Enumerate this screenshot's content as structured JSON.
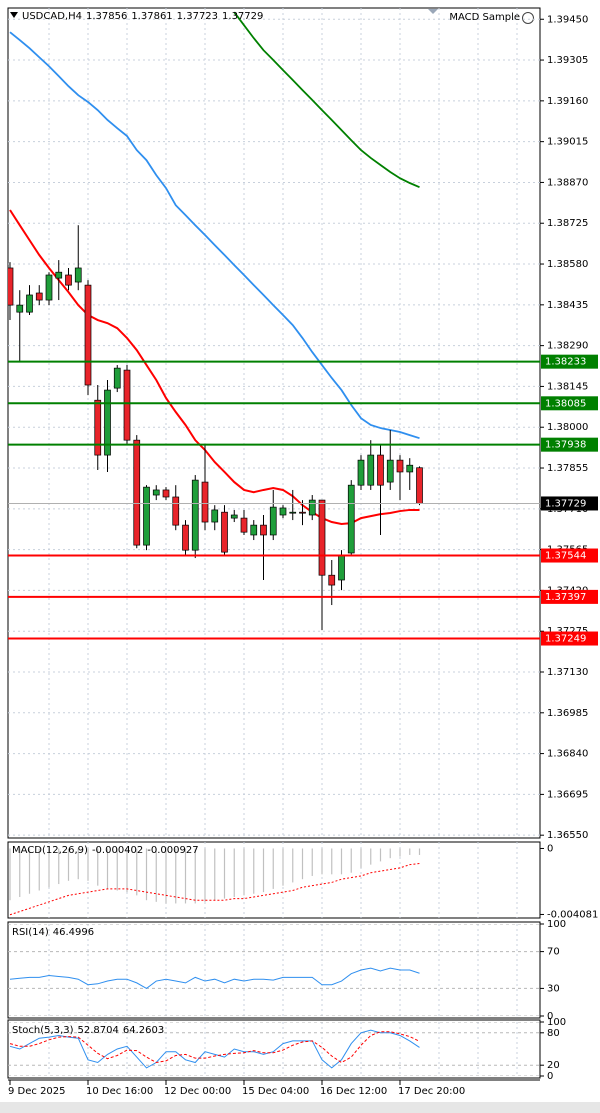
{
  "chart_data": [
    {
      "type": "candlestick",
      "title": "USDCAD,H4",
      "expert": "MACD Sample",
      "categories": [
        "9 Dec 2025",
        null,
        null,
        null,
        null,
        null,
        null,
        null,
        "10 Dec 16:00",
        null,
        null,
        null,
        null,
        null,
        null,
        null,
        "12 Dec 00:00",
        null,
        null,
        null,
        null,
        null,
        null,
        null,
        "15 Dec 04:00",
        null,
        null,
        null,
        null,
        null,
        null,
        null,
        "16 Dec 12:00",
        null,
        null,
        null,
        null,
        null,
        null,
        null,
        "17 Dec 20:00",
        null,
        null
      ],
      "open": [
        1.38566,
        1.38409,
        1.38409,
        1.38477,
        1.38452,
        1.3853,
        1.38541,
        1.38516,
        1.38505,
        1.38096,
        1.37901,
        1.38139,
        1.38203,
        1.37954,
        1.37581,
        1.37759,
        1.37777,
        1.37752,
        1.37652,
        1.37563,
        1.37805,
        1.37663,
        1.37698,
        1.37677,
        1.37677,
        1.37617,
        1.37652,
        1.37617,
        1.37688,
        1.37695,
        1.37698,
        1.37688,
        1.37741,
        1.37474,
        1.37457,
        1.37553,
        1.37794,
        1.37794,
        1.37901,
        1.37805,
        1.37883,
        1.37841,
        1.37856
      ],
      "high": [
        1.38587,
        1.38487,
        1.38505,
        1.38505,
        1.38551,
        1.38594,
        1.38566,
        1.38718,
        1.38523,
        1.3815,
        1.38168,
        1.38221,
        1.38221,
        1.37972,
        1.37794,
        1.37794,
        1.37787,
        1.37794,
        1.3767,
        1.3783,
        1.37937,
        1.37723,
        1.37723,
        1.37706,
        1.37706,
        1.3767,
        1.37688,
        1.37777,
        1.37723,
        1.37777,
        1.37741,
        1.37759,
        1.37741,
        1.37528,
        1.37563,
        1.37812,
        1.37901,
        1.37954,
        1.37937,
        1.3799,
        1.37901,
        1.3789,
        1.37861
      ],
      "low": [
        1.38381,
        1.38232,
        1.38399,
        1.38434,
        1.38434,
        1.38452,
        1.38487,
        1.38487,
        1.38114,
        1.37848,
        1.37841,
        1.38125,
        1.37937,
        1.3757,
        1.37563,
        1.37741,
        1.37741,
        1.37634,
        1.37546,
        1.37535,
        1.37634,
        1.37634,
        1.37542,
        1.37663,
        1.37617,
        1.37599,
        1.37457,
        1.37599,
        1.37677,
        1.3767,
        1.37652,
        1.3767,
        1.37279,
        1.37368,
        1.37421,
        1.37546,
        1.37777,
        1.37777,
        1.37617,
        1.37777,
        1.37741,
        1.37777,
        1.37723
      ],
      "close": [
        1.38434,
        1.38434,
        1.3847,
        1.38452,
        1.38541,
        1.38551,
        1.38505,
        1.38566,
        1.3815,
        1.37901,
        1.38132,
        1.3821,
        1.37954,
        1.37581,
        1.37787,
        1.37777,
        1.37752,
        1.37652,
        1.37563,
        1.37812,
        1.37663,
        1.37706,
        1.37556,
        1.37688,
        1.37627,
        1.37652,
        1.37617,
        1.37716,
        1.37713,
        1.37698,
        1.37695,
        1.37741,
        1.37474,
        1.37439,
        1.37546,
        1.37794,
        1.37883,
        1.37901,
        1.37794,
        1.37883,
        1.37841,
        1.37865,
        1.37729
      ],
      "up_color": "#1f9e3a",
      "down_color": "#e8242a",
      "lines": [
        {
          "color": "#ff0000",
          "values": [
            1.38772,
            1.38718,
            1.38665,
            1.38612,
            1.38566,
            1.38523,
            1.3848,
            1.38434,
            1.38399,
            1.38381,
            1.3837,
            1.38352,
            1.38317,
            1.38274,
            1.38221,
            1.38168,
            1.38104,
            1.38054,
            1.38008,
            1.37954,
            1.37919,
            1.37876,
            1.37841,
            1.37805,
            1.37777,
            1.37769,
            1.37777,
            1.37784,
            1.37777,
            1.37755,
            1.37723,
            1.37698,
            1.37677,
            1.37663,
            1.37656,
            1.37659,
            1.37677,
            1.37684,
            1.37691,
            1.37695,
            1.37702,
            1.37706,
            1.37706
          ]
        },
        {
          "color": "#2f8fef",
          "values": [
            1.39404,
            1.39376,
            1.39347,
            1.39315,
            1.39283,
            1.39248,
            1.39212,
            1.3918,
            1.39156,
            1.39127,
            1.39092,
            1.39063,
            1.39035,
            1.38985,
            1.38949,
            1.38896,
            1.3885,
            1.38789,
            1.38754,
            1.38718,
            1.38683,
            1.38647,
            1.38612,
            1.38576,
            1.38541,
            1.38505,
            1.3847,
            1.38434,
            1.38399,
            1.38363,
            1.38317,
            1.38267,
            1.38221,
            1.38175,
            1.38132,
            1.38079,
            1.38032,
            1.38008,
            1.37997,
            1.3799,
            1.37983,
            1.37972,
            1.37961
          ]
        },
        {
          "color": "#008000",
          "values": [
            null,
            null,
            null,
            null,
            null,
            null,
            null,
            null,
            null,
            null,
            null,
            null,
            null,
            null,
            null,
            null,
            null,
            null,
            null,
            null,
            null,
            null,
            null,
            1.39475,
            1.39429,
            1.39383,
            1.3934,
            1.39305,
            1.39269,
            1.39234,
            1.39198,
            1.39163,
            1.39127,
            1.39092,
            1.39056,
            1.3902,
            1.38985,
            1.38957,
            1.38932,
            1.38907,
            1.38885,
            1.38868,
            1.38853
          ]
        }
      ],
      "levels": [
        {
          "value": 1.38233,
          "color": "#008000"
        },
        {
          "value": 1.38085,
          "color": "#008000"
        },
        {
          "value": 1.37938,
          "color": "#008000"
        },
        {
          "value": 1.37544,
          "color": "#ff0000"
        },
        {
          "value": 1.37397,
          "color": "#ff0000"
        },
        {
          "value": 1.37249,
          "color": "#ff0000"
        }
      ],
      "ylim": [
        1.3654,
        1.3949
      ],
      "yticks": [
        {
          "value": 1.3945,
          "label": "1.39450"
        },
        1.39305,
        {
          "value": 1.3916,
          "label": "1.39160"
        },
        1.39015,
        {
          "value": 1.3887,
          "label": "1.38870"
        },
        1.38725,
        {
          "value": 1.3858,
          "label": "1.38580"
        },
        1.38435,
        {
          "value": 1.3829,
          "label": "1.38290"
        },
        1.38145,
        {
          "value": 1.38,
          "label": "1.38000"
        },
        1.37855,
        {
          "value": 1.3771,
          "label": "1.37710"
        },
        1.37565,
        {
          "value": 1.3742,
          "label": "1.37420"
        },
        1.37275,
        {
          "value": 1.3713,
          "label": "1.37130"
        },
        1.36985,
        {
          "value": 1.3684,
          "label": "1.36840"
        },
        1.36695,
        {
          "value": 1.3655,
          "label": "1.36550"
        }
      ],
      "grid": true
    },
    {
      "type": "macd",
      "title": "MACD(12,26,9)",
      "color": "#c0c0c0",
      "signal_color": "#ff0000",
      "values": [
        -0.0032,
        -0.003,
        -0.0028,
        -0.0026,
        -0.0024,
        -0.0022,
        -0.002,
        -0.0019,
        -0.002,
        -0.0023,
        -0.0025,
        -0.0026,
        -0.0027,
        -0.0029,
        -0.0032,
        -0.0033,
        -0.0034,
        -0.0034,
        -0.0034,
        -0.0034,
        -0.0033,
        -0.0032,
        -0.0031,
        -0.003,
        -0.0029,
        -0.0028,
        -0.0027,
        -0.0025,
        -0.0023,
        -0.0021,
        -0.0019,
        -0.0017,
        -0.0016,
        -0.0016,
        -0.0016,
        -0.0015,
        -0.0012,
        -0.001,
        -0.0008,
        -0.0006,
        -0.0005,
        -0.0004,
        -0.000402
      ],
      "signal": [
        -0.0041,
        -0.0039,
        -0.0037,
        -0.0035,
        -0.0033,
        -0.0031,
        -0.0029,
        -0.0028,
        -0.0027,
        -0.0026,
        -0.0025,
        -0.0025,
        -0.0025,
        -0.0026,
        -0.0027,
        -0.0028,
        -0.0029,
        -0.003,
        -0.0031,
        -0.0032,
        -0.0032,
        -0.0032,
        -0.0032,
        -0.0031,
        -0.0031,
        -0.003,
        -0.0029,
        -0.0028,
        -0.0027,
        -0.0026,
        -0.0024,
        -0.0023,
        -0.0022,
        -0.0021,
        -0.0019,
        -0.0018,
        -0.0017,
        -0.0015,
        -0.0014,
        -0.0013,
        -0.0012,
        -0.001,
        -0.000927
      ],
      "ylim": [
        -0.0043,
        0.0004
      ],
      "yticks": [
        0,
        -0.004081
      ],
      "grid": false
    },
    {
      "type": "line",
      "title": "RSI(14)",
      "lines": [
        {
          "color": "#2f8fef",
          "values": [
            40,
            41,
            42,
            42,
            44,
            43,
            42,
            40,
            34,
            35,
            38,
            40,
            40,
            36,
            30,
            38,
            40,
            38,
            36,
            42,
            38,
            40,
            36,
            40,
            38,
            40,
            40,
            39,
            42,
            42,
            42,
            42,
            34,
            34,
            38,
            46,
            50,
            52,
            49,
            52,
            50,
            50,
            46.4996
          ]
        }
      ],
      "ylim": [
        0,
        100
      ],
      "yticks": [
        100,
        70,
        30,
        0
      ],
      "grid": true
    },
    {
      "type": "line",
      "title": "Stoch(5,3,3)",
      "lines": [
        {
          "color": "#2f8fef",
          "values": [
            55,
            50,
            60,
            70,
            72,
            75,
            72,
            70,
            30,
            25,
            40,
            50,
            55,
            35,
            15,
            25,
            45,
            45,
            30,
            25,
            45,
            40,
            35,
            50,
            45,
            45,
            40,
            45,
            60,
            65,
            65,
            65,
            30,
            15,
            30,
            60,
            80,
            85,
            80,
            80,
            75,
            65,
            52.8704
          ]
        },
        {
          "color": "#ff0000",
          "dashed": true,
          "values": [
            60,
            55,
            55,
            60,
            67,
            72,
            73,
            72,
            57,
            42,
            32,
            38,
            48,
            47,
            35,
            25,
            28,
            38,
            40,
            33,
            33,
            37,
            40,
            42,
            43,
            47,
            43,
            43,
            48,
            57,
            63,
            65,
            53,
            37,
            25,
            35,
            57,
            75,
            82,
            82,
            78,
            73,
            64.2603
          ]
        }
      ],
      "ylim": [
        0,
        100
      ],
      "yticks": [
        100,
        80,
        20,
        0
      ],
      "grid": true
    }
  ]
}
